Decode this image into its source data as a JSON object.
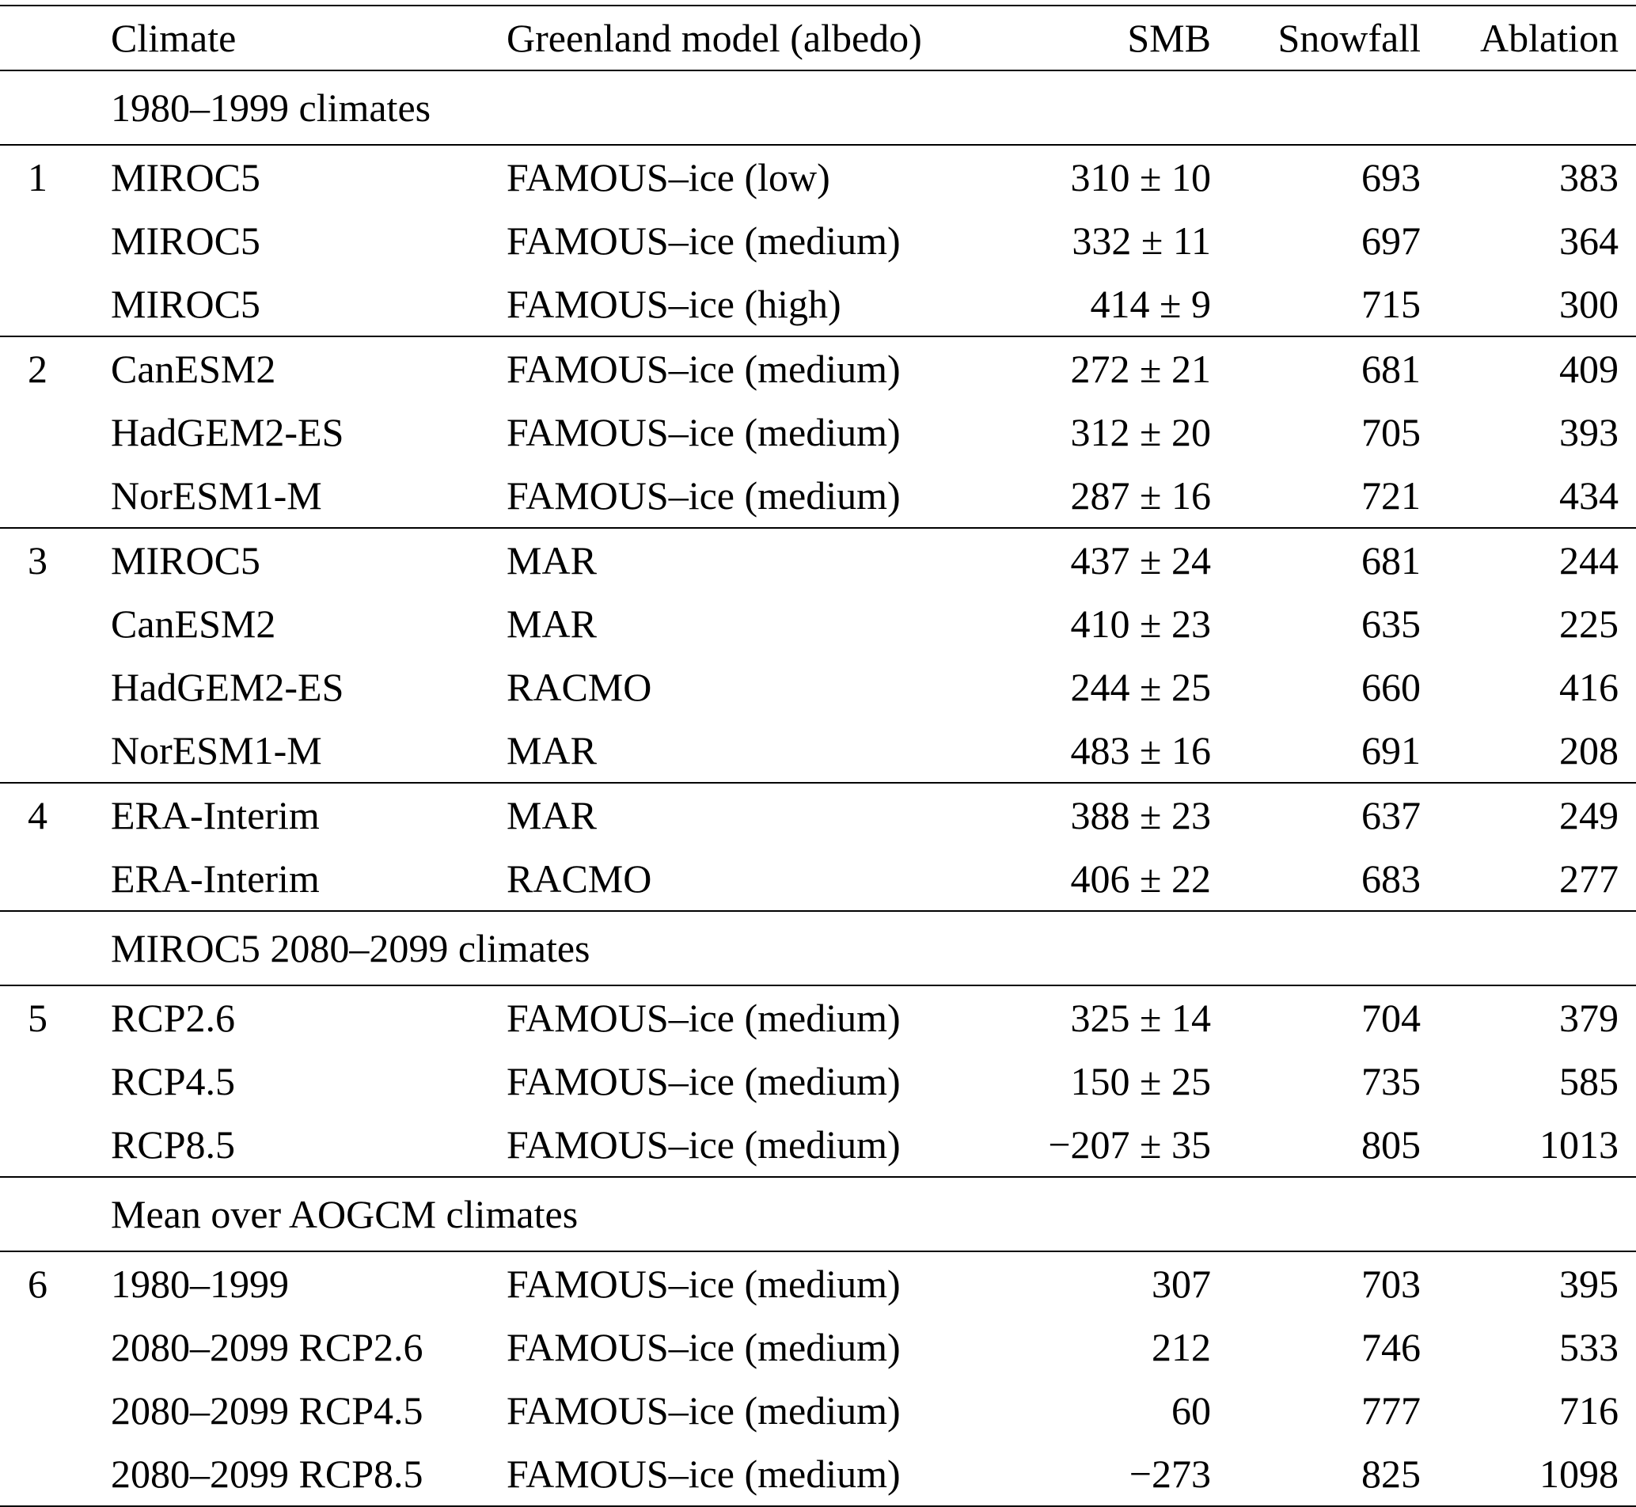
{
  "colors": {
    "background": "#ffffff",
    "text": "#000000",
    "rule": "#000000"
  },
  "table": {
    "columns": [
      "",
      "Climate",
      "Greenland model (albedo)",
      "SMB",
      "Snowfall",
      "Ablation"
    ],
    "sections": [
      {
        "title": "1980–1999 climates",
        "groups": [
          {
            "id": "1",
            "rows": [
              {
                "climate": "MIROC5",
                "model": "FAMOUS–ice (low)",
                "smb": "310 ± 10",
                "snowfall": "693",
                "ablation": "383"
              },
              {
                "climate": "MIROC5",
                "model": "FAMOUS–ice (medium)",
                "smb": "332 ± 11",
                "snowfall": "697",
                "ablation": "364"
              },
              {
                "climate": "MIROC5",
                "model": "FAMOUS–ice (high)",
                "smb": "414 ± 9",
                "snowfall": "715",
                "ablation": "300"
              }
            ]
          },
          {
            "id": "2",
            "rows": [
              {
                "climate": "CanESM2",
                "model": "FAMOUS–ice (medium)",
                "smb": "272 ± 21",
                "snowfall": "681",
                "ablation": "409"
              },
              {
                "climate": "HadGEM2-ES",
                "model": "FAMOUS–ice (medium)",
                "smb": "312 ± 20",
                "snowfall": "705",
                "ablation": "393"
              },
              {
                "climate": "NorESM1-M",
                "model": "FAMOUS–ice (medium)",
                "smb": "287 ± 16",
                "snowfall": "721",
                "ablation": "434"
              }
            ]
          },
          {
            "id": "3",
            "rows": [
              {
                "climate": "MIROC5",
                "model": "MAR",
                "smb": "437 ± 24",
                "snowfall": "681",
                "ablation": "244"
              },
              {
                "climate": "CanESM2",
                "model": "MAR",
                "smb": "410 ± 23",
                "snowfall": "635",
                "ablation": "225"
              },
              {
                "climate": "HadGEM2-ES",
                "model": "RACMO",
                "smb": "244 ± 25",
                "snowfall": "660",
                "ablation": "416"
              },
              {
                "climate": "NorESM1-M",
                "model": "MAR",
                "smb": "483 ± 16",
                "snowfall": "691",
                "ablation": "208"
              }
            ]
          },
          {
            "id": "4",
            "rows": [
              {
                "climate": "ERA-Interim",
                "model": "MAR",
                "smb": "388 ± 23",
                "snowfall": "637",
                "ablation": "249"
              },
              {
                "climate": "ERA-Interim",
                "model": "RACMO",
                "smb": "406 ± 22",
                "snowfall": "683",
                "ablation": "277"
              }
            ]
          }
        ]
      },
      {
        "title": "MIROC5 2080–2099 climates",
        "groups": [
          {
            "id": "5",
            "rows": [
              {
                "climate": "RCP2.6",
                "model": "FAMOUS–ice (medium)",
                "smb": "325 ± 14",
                "snowfall": "704",
                "ablation": "379"
              },
              {
                "climate": "RCP4.5",
                "model": "FAMOUS–ice (medium)",
                "smb": "150 ± 25",
                "snowfall": "735",
                "ablation": "585"
              },
              {
                "climate": "RCP8.5",
                "model": "FAMOUS–ice (medium)",
                "smb": "−207 ± 35",
                "snowfall": "805",
                "ablation": "1013"
              }
            ]
          }
        ]
      },
      {
        "title": "Mean over AOGCM climates",
        "groups": [
          {
            "id": "6",
            "rows": [
              {
                "climate": "1980–1999",
                "model": "FAMOUS–ice (medium)",
                "smb": "307",
                "snowfall": "703",
                "ablation": "395"
              },
              {
                "climate": "2080–2099 RCP2.6",
                "model": "FAMOUS–ice (medium)",
                "smb": "212",
                "snowfall": "746",
                "ablation": "533"
              },
              {
                "climate": "2080–2099 RCP4.5",
                "model": "FAMOUS–ice (medium)",
                "smb": "60",
                "snowfall": "777",
                "ablation": "716"
              },
              {
                "climate": "2080–2099 RCP8.5",
                "model": "FAMOUS–ice (medium)",
                "smb": "−273",
                "snowfall": "825",
                "ablation": "1098"
              }
            ]
          }
        ]
      }
    ]
  }
}
